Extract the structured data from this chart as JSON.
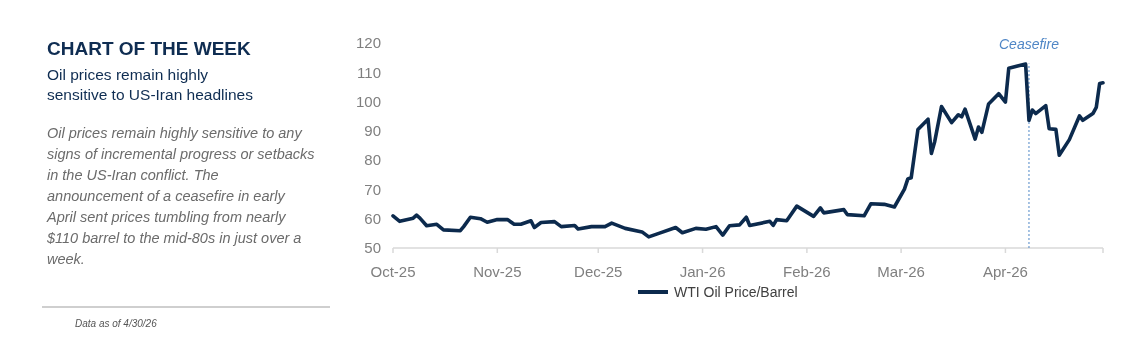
{
  "chart_data": {
    "type": "line",
    "title": "CHART OF THE WEEK",
    "subtitle": "Oil prices remain highly sensitive to US-Iran headlines",
    "annotations": [
      "Oil prices remain highly sensitive to any signs of incremental progress or setbacks in the US-Iran conflict. The announcement of a ceasefire in early April sent prices tumbling from nearly $110 barrel to the mid-80s in just over a week.",
      "Data as of 4/30/26"
    ],
    "x": [
      "2025-10-01",
      "2025-10-03",
      "2025-10-07",
      "2025-10-08",
      "2025-10-09",
      "2025-10-11",
      "2025-10-14",
      "2025-10-16",
      "2025-10-21",
      "2025-10-22",
      "2025-10-24",
      "2025-10-27",
      "2025-10-29",
      "2025-11-01",
      "2025-11-04",
      "2025-11-06",
      "2025-11-08",
      "2025-11-11",
      "2025-11-12",
      "2025-11-14",
      "2025-11-18",
      "2025-11-20",
      "2025-11-24",
      "2025-11-25",
      "2025-11-29",
      "2025-12-03",
      "2025-12-05",
      "2025-12-09",
      "2025-12-14",
      "2025-12-16",
      "2025-12-19",
      "2025-12-24",
      "2025-12-26",
      "2025-12-30",
      "2026-01-02",
      "2026-01-05",
      "2026-01-07",
      "2026-01-09",
      "2026-01-12",
      "2026-01-14",
      "2026-01-15",
      "2026-01-21",
      "2026-01-22",
      "2026-01-23",
      "2026-01-26",
      "2026-01-29",
      "2026-02-03",
      "2026-02-05",
      "2026-02-06",
      "2026-02-12",
      "2026-02-13",
      "2026-02-18",
      "2026-02-20",
      "2026-02-24",
      "2026-02-27",
      "2026-03-02",
      "2026-03-03",
      "2026-03-04",
      "2026-03-06",
      "2026-03-09",
      "2026-03-10",
      "2026-03-11",
      "2026-03-13",
      "2026-03-16",
      "2026-03-18",
      "2026-03-19",
      "2026-03-20",
      "2026-03-23",
      "2026-03-24",
      "2026-03-25",
      "2026-03-27",
      "2026-03-30",
      "2026-04-01",
      "2026-04-02",
      "2026-04-07",
      "2026-04-08",
      "2026-04-09",
      "2026-04-10",
      "2026-04-13",
      "2026-04-14",
      "2026-04-16",
      "2026-04-17",
      "2026-04-20",
      "2026-04-23",
      "2026-04-24",
      "2026-04-27",
      "2026-04-28",
      "2026-04-29",
      "2026-04-30"
    ],
    "series": [
      {
        "name": "WTI Oil Price/Barrel",
        "color": "#0c2a4d",
        "values": [
          61,
          59.1,
          60.2,
          61.2,
          60.2,
          57.6,
          58.1,
          56.2,
          55.9,
          57.3,
          60.5,
          60,
          58.8,
          59.7,
          59.7,
          58.1,
          58.1,
          59.3,
          57,
          58.7,
          59,
          57.3,
          57.7,
          56.5,
          57.3,
          57.3,
          58.5,
          56.7,
          55.5,
          53.8,
          55,
          57,
          55.2,
          56.7,
          56.4,
          57.3,
          54.4,
          57.6,
          57.9,
          60.5,
          57.7,
          59.1,
          57.7,
          59.7,
          59.3,
          64.3,
          60.8,
          63.7,
          62,
          63.1,
          61.4,
          61,
          65.1,
          64.9,
          64,
          70.1,
          73.6,
          74,
          90.5,
          94,
          82.3,
          86.4,
          98.3,
          92.8,
          95.5,
          94.8,
          97.4,
          87.2,
          91.3,
          89.5,
          99.2,
          102.7,
          99.8,
          111.4,
          112.8,
          93.6,
          97.1,
          95.9,
          98.6,
          90.7,
          90.5,
          81.7,
          87,
          95.1,
          93.6,
          95.9,
          98,
          106.2,
          106.4
        ]
      }
    ],
    "xlim": [
      "2025-10-01",
      "2026-04-30"
    ],
    "xticks": [
      {
        "value": "2025-10-01",
        "label": "Oct-25"
      },
      {
        "value": "2025-11-01",
        "label": "Nov-25"
      },
      {
        "value": "2025-12-01",
        "label": "Dec-25"
      },
      {
        "value": "2026-01-01",
        "label": "Jan-26"
      },
      {
        "value": "2026-02-01",
        "label": "Feb-26"
      },
      {
        "value": "2026-03-01",
        "label": "Mar-26"
      },
      {
        "value": "2026-04-01",
        "label": "Apr-26"
      }
    ],
    "ylim": [
      50,
      120
    ],
    "yticks": [
      50,
      60,
      70,
      80,
      90,
      100,
      110,
      120
    ],
    "ref_lines": [
      {
        "axis": "x",
        "value": "2026-04-08",
        "label": "Ceasefire",
        "color": "#4f86c6",
        "line_style": "dotted"
      }
    ],
    "grid": false,
    "legend": "bottom",
    "line_style": "solid",
    "marker": "none"
  }
}
